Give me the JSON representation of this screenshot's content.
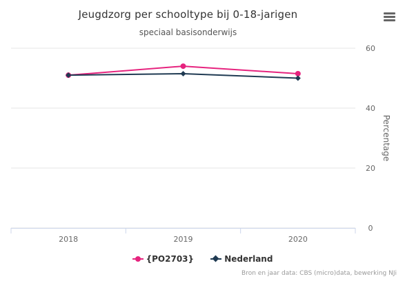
{
  "chart_data": {
    "type": "line",
    "title": "Jeugdzorg per schooltype bij 0-18-jarigen",
    "subtitle": "speciaal basisonderwijs",
    "x": [
      "2018",
      "2019",
      "2020"
    ],
    "ylabel": "Percentage",
    "ylim": [
      0,
      60
    ],
    "yticks": [
      0,
      20,
      40,
      60
    ],
    "y_axis_side": "right",
    "grid": true,
    "legend_position": "bottom-center",
    "series": [
      {
        "name": "{PO2703}",
        "values": [
          51,
          54,
          51.5
        ],
        "color": "#e6237e",
        "marker": "circle"
      },
      {
        "name": "Nederland",
        "values": [
          51,
          51.5,
          50
        ],
        "color": "#1f3a52",
        "marker": "diamond"
      }
    ]
  },
  "header": {
    "title": "Jeugdzorg per schooltype bij 0-18-jarigen",
    "subtitle": "speciaal basisonderwijs",
    "menu_icon": "hamburger-menu-icon"
  },
  "legend": {
    "items": [
      {
        "label": "{PO2703}",
        "color": "#e6237e"
      },
      {
        "label": "Nederland",
        "color": "#1f3a52"
      }
    ]
  },
  "credits": "Bron en jaar data: CBS (micro)data, bewerking NJi"
}
